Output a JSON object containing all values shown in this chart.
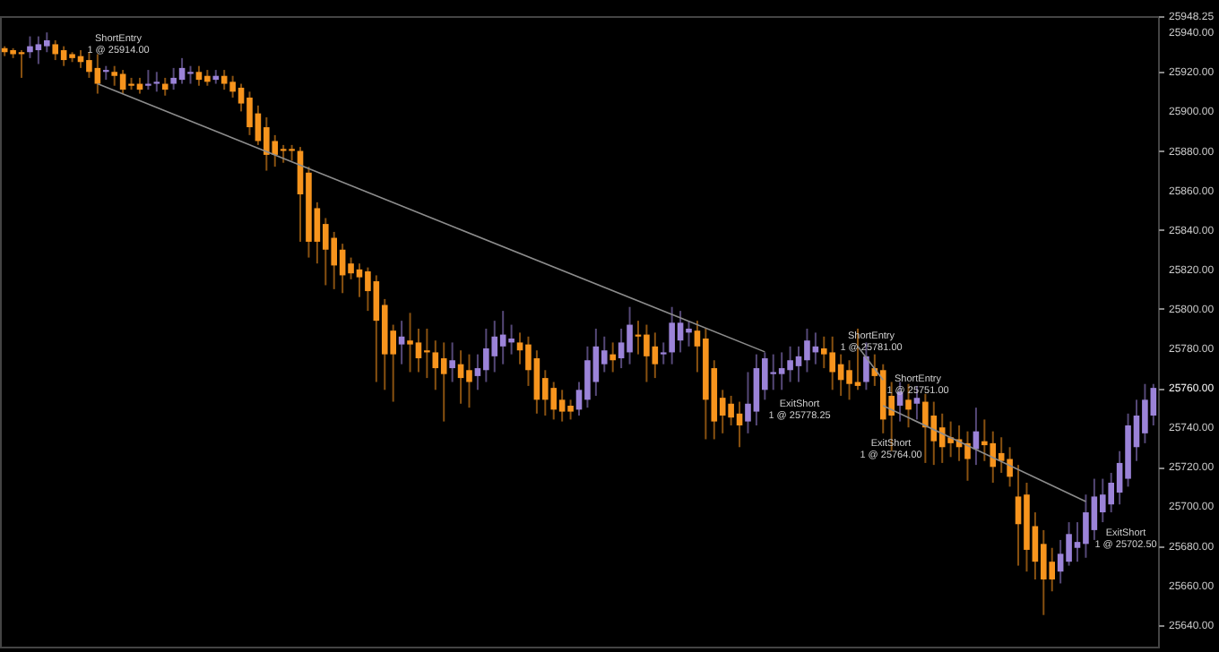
{
  "chart_data": {
    "type": "candlestick",
    "categories": [
      null,
      null,
      null,
      null,
      null,
      null,
      null,
      null,
      null,
      null,
      null,
      null,
      null,
      null,
      null,
      null,
      null,
      null,
      null,
      null,
      null,
      null,
      null,
      null,
      null,
      null,
      null,
      null,
      null,
      null,
      null,
      null,
      null,
      null,
      null,
      null,
      null,
      null,
      null,
      null,
      null,
      null,
      null,
      null,
      null,
      null,
      null,
      null,
      null,
      null,
      null,
      null,
      null,
      null,
      null,
      null,
      null,
      null,
      null,
      null,
      null,
      null,
      null,
      null,
      null,
      null,
      null,
      null,
      null,
      null,
      null,
      null,
      null,
      null,
      null,
      null,
      null,
      null,
      null,
      null,
      null,
      null,
      null,
      null,
      null,
      null,
      null,
      null,
      null,
      null,
      null,
      null,
      null,
      null,
      null,
      null,
      null,
      null,
      null,
      null,
      null,
      null,
      null,
      null,
      null,
      null,
      null,
      null,
      null,
      null,
      null,
      null,
      null,
      null,
      null,
      null,
      null,
      null,
      null,
      null,
      null,
      null,
      null,
      null,
      null,
      null,
      null,
      null,
      null,
      null,
      null,
      null,
      null,
      null,
      null,
      null,
      null
    ],
    "ohlc": [
      [
        25932,
        25933,
        25928,
        25930
      ],
      [
        25931,
        25932,
        25927,
        25929
      ],
      [
        25930,
        25931,
        25917,
        25929
      ],
      [
        25930,
        25938,
        25927,
        25933
      ],
      [
        25931,
        25938,
        25924,
        25934
      ],
      [
        25933,
        25940,
        25930,
        25936
      ],
      [
        25934,
        25936,
        25926,
        25929
      ],
      [
        25931,
        25933,
        25923,
        25926
      ],
      [
        25929,
        25930,
        25925,
        25927
      ],
      [
        25928,
        25931,
        25922,
        25925
      ],
      [
        25926,
        25930,
        25917,
        25920
      ],
      [
        25922,
        25929,
        25909,
        25914
      ],
      [
        25920,
        25923,
        25916,
        25921
      ],
      [
        25920,
        25923,
        25913,
        25918
      ],
      [
        25919,
        25921,
        25909,
        25911
      ],
      [
        25914,
        25917,
        25911,
        25913
      ],
      [
        25914,
        25917,
        25909,
        25911
      ],
      [
        25913,
        25921,
        25911,
        25914
      ],
      [
        25914,
        25920,
        25910,
        25915
      ],
      [
        25914,
        25917,
        25908,
        25911
      ],
      [
        25914,
        25922,
        25911,
        25917
      ],
      [
        25916,
        25927,
        25914,
        25922
      ],
      [
        25919,
        25923,
        25914,
        25920
      ],
      [
        25920,
        25923,
        25913,
        25916
      ],
      [
        25918,
        25921,
        25913,
        25915
      ],
      [
        25916,
        25921,
        25914,
        25918
      ],
      [
        25918,
        25921,
        25911,
        25914
      ],
      [
        25915,
        25918,
        25907,
        25910
      ],
      [
        25912,
        25914,
        25900,
        25904
      ],
      [
        25907,
        25910,
        25888,
        25892
      ],
      [
        25899,
        25903,
        25883,
        25885
      ],
      [
        25892,
        25897,
        25870,
        25878
      ],
      [
        25885,
        25888,
        25872,
        25878
      ],
      [
        25881,
        25883,
        25874,
        25880
      ],
      [
        25881,
        25883,
        25875,
        25880
      ],
      [
        25880,
        25882,
        25834,
        25858
      ],
      [
        25869,
        25872,
        25826,
        25834
      ],
      [
        25851,
        25854,
        25823,
        25834
      ],
      [
        25843,
        25846,
        25812,
        25830
      ],
      [
        25836,
        25839,
        25810,
        25822
      ],
      [
        25830,
        25833,
        25808,
        25817
      ],
      [
        25823,
        25826,
        25815,
        25818
      ],
      [
        25820,
        25823,
        25806,
        25816
      ],
      [
        25819,
        25821,
        25799,
        25809
      ],
      [
        25814,
        25817,
        25763,
        25794
      ],
      [
        25802,
        25805,
        25759,
        25777
      ],
      [
        25789,
        25792,
        25753,
        25777
      ],
      [
        25782,
        25794,
        25772,
        25786
      ],
      [
        25784,
        25798,
        25768,
        25782
      ],
      [
        25783,
        25790,
        25768,
        25775
      ],
      [
        25779,
        25790,
        25765,
        25778
      ],
      [
        25778,
        25784,
        25759,
        25770
      ],
      [
        25775,
        25783,
        25743,
        25767
      ],
      [
        25770,
        25783,
        25763,
        25774
      ],
      [
        25772,
        25779,
        25752,
        25765
      ],
      [
        25769,
        25777,
        25750,
        25763
      ],
      [
        25766,
        25777,
        25759,
        25770
      ],
      [
        25769,
        25790,
        25763,
        25780
      ],
      [
        25776,
        25794,
        25768,
        25786
      ],
      [
        25781,
        25799,
        25772,
        25787
      ],
      [
        25783,
        25792,
        25777,
        25785
      ],
      [
        25783,
        25788,
        25772,
        25779
      ],
      [
        25782,
        25786,
        25761,
        25769
      ],
      [
        25775,
        25779,
        25747,
        25754
      ],
      [
        25765,
        25769,
        25746,
        25754
      ],
      [
        25760,
        25763,
        25744,
        25749
      ],
      [
        25754,
        25759,
        25743,
        25748
      ],
      [
        25751,
        25754,
        25744,
        25748
      ],
      [
        25749,
        25763,
        25746,
        25759
      ],
      [
        25754,
        25781,
        25750,
        25774
      ],
      [
        25763,
        25790,
        25756,
        25781
      ],
      [
        25772,
        25786,
        25768,
        25779
      ],
      [
        25777,
        25783,
        25768,
        25774
      ],
      [
        25775,
        25790,
        25770,
        25783
      ],
      [
        25778,
        25801,
        25772,
        25792
      ],
      [
        25787,
        25794,
        25777,
        25786
      ],
      [
        25787,
        25792,
        25763,
        25776
      ],
      [
        25781,
        25788,
        25765,
        25772
      ],
      [
        25777,
        25783,
        25772,
        25778
      ],
      [
        25778,
        25801,
        25772,
        25793
      ],
      [
        25784,
        25799,
        25778,
        25793
      ],
      [
        25788,
        25794,
        25781,
        25790
      ],
      [
        25789,
        25794,
        25768,
        25781
      ],
      [
        25785,
        25790,
        25734,
        25754
      ],
      [
        25770,
        25774,
        25734,
        25743
      ],
      [
        25755,
        25759,
        25737,
        25746
      ],
      [
        25752,
        25756,
        25741,
        25745
      ],
      [
        25747,
        25753,
        25730,
        25741
      ],
      [
        25743,
        25768,
        25737,
        25752
      ],
      [
        25748,
        25777,
        25741,
        25770
      ],
      [
        25759,
        25778,
        25754,
        25775
      ],
      [
        25767,
        25777,
        25759,
        25768
      ],
      [
        25767,
        25778,
        25759,
        25770
      ],
      [
        25769,
        25781,
        25763,
        25774
      ],
      [
        25771,
        25781,
        25763,
        25776
      ],
      [
        25774,
        25790,
        25768,
        25784
      ],
      [
        25778,
        25788,
        25772,
        25781
      ],
      [
        25780,
        25786,
        25770,
        25777
      ],
      [
        25778,
        25786,
        25759,
        25768
      ],
      [
        25772,
        25777,
        25756,
        25764
      ],
      [
        25769,
        25774,
        25754,
        25762
      ],
      [
        25763,
        25790,
        25759,
        25761
      ],
      [
        25763,
        25783,
        25759,
        25776
      ],
      [
        25770,
        25777,
        25761,
        25766
      ],
      [
        25769,
        25772,
        25737,
        25744
      ],
      [
        25756,
        25763,
        25728,
        25746
      ],
      [
        25751,
        25763,
        25743,
        25758
      ],
      [
        25754,
        25762,
        25740,
        25749
      ],
      [
        25752,
        25761,
        25744,
        25755
      ],
      [
        25753,
        25757,
        25722,
        25740
      ],
      [
        25746,
        25753,
        25721,
        25733
      ],
      [
        25740,
        25747,
        25722,
        25730
      ],
      [
        25735,
        25743,
        25725,
        25732
      ],
      [
        25734,
        25741,
        25723,
        25730
      ],
      [
        25732,
        25738,
        25713,
        25724
      ],
      [
        25729,
        25750,
        25721,
        25738
      ],
      [
        25733,
        25744,
        25723,
        25731
      ],
      [
        25732,
        25738,
        25712,
        25720
      ],
      [
        25727,
        25735,
        25717,
        25723
      ],
      [
        25724,
        25730,
        25710,
        25715
      ],
      [
        25705,
        25721,
        25670,
        25691
      ],
      [
        25706,
        25712,
        25667,
        25678
      ],
      [
        25690,
        25697,
        25663,
        25672
      ],
      [
        25681,
        25688,
        25645,
        25663
      ],
      [
        25672,
        25679,
        25657,
        25663
      ],
      [
        25667,
        25683,
        25661,
        25676
      ],
      [
        25672,
        25692,
        25670,
        25686
      ],
      [
        25679,
        25692,
        25672,
        25682
      ],
      [
        25681,
        25706,
        25674,
        25697
      ],
      [
        25688,
        25714,
        25683,
        25705
      ],
      [
        25697,
        25714,
        25692,
        25706
      ],
      [
        25701,
        25717,
        25697,
        25712
      ],
      [
        25707,
        25728,
        25701,
        25722
      ],
      [
        25714,
        25747,
        25710,
        25741
      ],
      [
        25730,
        25754,
        25723,
        25746
      ],
      [
        25737,
        25762,
        25732,
        25754
      ],
      [
        25746,
        25762,
        25741,
        25760
      ]
    ],
    "colors": [
      "#f7941d",
      "#f7941d",
      "#f7941d",
      "#9b83d8",
      "#9b83d8",
      "#9b83d8",
      "#f7941d",
      "#f7941d",
      "#f7941d",
      "#f7941d",
      "#f7941d",
      "#f7941d",
      "#9b83d8",
      "#f7941d",
      "#f7941d",
      "#f7941d",
      "#f7941d",
      "#9b83d8",
      "#9b83d8",
      "#f7941d",
      "#9b83d8",
      "#9b83d8",
      "#9b83d8",
      "#f7941d",
      "#f7941d",
      "#9b83d8",
      "#f7941d",
      "#f7941d",
      "#f7941d",
      "#f7941d",
      "#f7941d",
      "#f7941d",
      "#f7941d",
      "#f7941d",
      "#f7941d",
      "#f7941d",
      "#f7941d",
      "#f7941d",
      "#f7941d",
      "#f7941d",
      "#f7941d",
      "#f7941d",
      "#f7941d",
      "#f7941d",
      "#f7941d",
      "#f7941d",
      "#f7941d",
      "#9b83d8",
      "#f7941d",
      "#f7941d",
      "#f7941d",
      "#f7941d",
      "#f7941d",
      "#9b83d8",
      "#f7941d",
      "#f7941d",
      "#9b83d8",
      "#9b83d8",
      "#9b83d8",
      "#9b83d8",
      "#9b83d8",
      "#f7941d",
      "#f7941d",
      "#f7941d",
      "#f7941d",
      "#f7941d",
      "#f7941d",
      "#f7941d",
      "#9b83d8",
      "#9b83d8",
      "#9b83d8",
      "#9b83d8",
      "#f7941d",
      "#9b83d8",
      "#9b83d8",
      "#f7941d",
      "#f7941d",
      "#f7941d",
      "#9b83d8",
      "#9b83d8",
      "#9b83d8",
      "#9b83d8",
      "#f7941d",
      "#f7941d",
      "#f7941d",
      "#f7941d",
      "#f7941d",
      "#f7941d",
      "#9b83d8",
      "#9b83d8",
      "#9b83d8",
      "#9b83d8",
      "#9b83d8",
      "#9b83d8",
      "#9b83d8",
      "#9b83d8",
      "#9b83d8",
      "#f7941d",
      "#f7941d",
      "#f7941d",
      "#f7941d",
      "#f7941d",
      "#9b83d8",
      "#f7941d",
      "#f7941d",
      "#f7941d",
      "#9b83d8",
      "#f7941d",
      "#9b83d8",
      "#f7941d",
      "#f7941d",
      "#f7941d",
      "#f7941d",
      "#f7941d",
      "#f7941d",
      "#9b83d8",
      "#f7941d",
      "#f7941d",
      "#f7941d",
      "#f7941d",
      "#f7941d",
      "#f7941d",
      "#f7941d",
      "#f7941d",
      "#f7941d",
      "#9b83d8",
      "#9b83d8",
      "#9b83d8",
      "#9b83d8",
      "#9b83d8",
      "#9b83d8",
      "#9b83d8",
      "#9b83d8",
      "#9b83d8",
      "#9b83d8",
      "#9b83d8",
      "#9b83d8"
    ],
    "series": [
      {
        "type": "line",
        "color": "#8c8c8c",
        "values": [
          null,
          null,
          null,
          null,
          null,
          null,
          null,
          null,
          null,
          null,
          null,
          25914,
          null,
          null,
          null,
          null,
          null,
          null,
          null,
          null,
          null,
          null,
          null,
          null,
          null,
          null,
          null,
          null,
          null,
          null,
          null,
          null,
          null,
          null,
          null,
          null,
          null,
          null,
          null,
          null,
          null,
          null,
          null,
          null,
          null,
          null,
          null,
          null,
          null,
          null,
          null,
          null,
          null,
          null,
          null,
          null,
          null,
          null,
          null,
          null,
          null,
          null,
          null,
          null,
          null,
          null,
          null,
          null,
          null,
          null,
          null,
          null,
          null,
          null,
          null,
          null,
          null,
          null,
          null,
          null,
          null,
          null,
          null,
          null,
          null,
          null,
          null,
          null,
          null,
          null,
          25778.25,
          null,
          null,
          null,
          null,
          null,
          null,
          null,
          null,
          null,
          null,
          null,
          null,
          null,
          null,
          null,
          null,
          null,
          null,
          null,
          null,
          null,
          null,
          null,
          null,
          null,
          null,
          null,
          null,
          null,
          null,
          null,
          null,
          null,
          null,
          null,
          null,
          null,
          null,
          null,
          null,
          null,
          null,
          null,
          null,
          null,
          null
        ]
      },
      {
        "type": "line",
        "color": "#8c8c8c",
        "values": [
          null,
          null,
          null,
          null,
          null,
          null,
          null,
          null,
          null,
          null,
          null,
          null,
          null,
          null,
          null,
          null,
          null,
          null,
          null,
          null,
          null,
          null,
          null,
          null,
          null,
          null,
          null,
          null,
          null,
          null,
          null,
          null,
          null,
          null,
          null,
          null,
          null,
          null,
          null,
          null,
          null,
          null,
          null,
          null,
          null,
          null,
          null,
          null,
          null,
          null,
          null,
          null,
          null,
          null,
          null,
          null,
          null,
          null,
          null,
          null,
          null,
          null,
          null,
          null,
          null,
          null,
          null,
          null,
          null,
          null,
          null,
          null,
          null,
          null,
          null,
          null,
          null,
          null,
          null,
          null,
          null,
          null,
          null,
          null,
          null,
          null,
          null,
          null,
          null,
          null,
          null,
          null,
          null,
          null,
          null,
          null,
          null,
          null,
          null,
          null,
          null,
          25781,
          null,
          null,
          25764,
          null,
          null,
          null,
          null,
          null,
          null,
          null,
          null,
          null,
          null,
          null,
          null,
          null,
          null,
          null,
          null,
          null,
          null,
          null,
          null,
          null,
          null,
          null,
          null,
          null,
          null,
          null,
          null,
          null,
          null,
          null,
          null
        ]
      },
      {
        "type": "line",
        "color": "#8c8c8c",
        "values": [
          null,
          null,
          null,
          null,
          null,
          null,
          null,
          null,
          null,
          null,
          null,
          null,
          null,
          null,
          null,
          null,
          null,
          null,
          null,
          null,
          null,
          null,
          null,
          null,
          null,
          null,
          null,
          null,
          null,
          null,
          null,
          null,
          null,
          null,
          null,
          null,
          null,
          null,
          null,
          null,
          null,
          null,
          null,
          null,
          null,
          null,
          null,
          null,
          null,
          null,
          null,
          null,
          null,
          null,
          null,
          null,
          null,
          null,
          null,
          null,
          null,
          null,
          null,
          null,
          null,
          null,
          null,
          null,
          null,
          null,
          null,
          null,
          null,
          null,
          null,
          null,
          null,
          null,
          null,
          null,
          null,
          null,
          null,
          null,
          null,
          null,
          null,
          null,
          null,
          null,
          null,
          null,
          null,
          null,
          null,
          null,
          null,
          null,
          null,
          null,
          null,
          null,
          null,
          null,
          25751,
          null,
          null,
          null,
          null,
          null,
          null,
          null,
          null,
          null,
          null,
          null,
          null,
          null,
          null,
          null,
          null,
          null,
          null,
          null,
          null,
          null,
          null,
          null,
          25702.5,
          null,
          null,
          null,
          null,
          null,
          null,
          null,
          null
        ]
      }
    ],
    "ylim": [
      25629,
      25948.25
    ],
    "yticks": [
      {
        "value": 25640,
        "label": "25640.00"
      },
      {
        "value": 25660,
        "label": "25660.00"
      },
      {
        "value": 25680,
        "label": "25680.00"
      },
      {
        "value": 25700,
        "label": "25700.00"
      },
      {
        "value": 25720,
        "label": "25720.00"
      },
      {
        "value": 25740,
        "label": "25740.00"
      },
      {
        "value": 25760,
        "label": "25760.00"
      },
      {
        "value": 25780,
        "label": "25780.00"
      },
      {
        "value": 25800,
        "label": "25800.00"
      },
      {
        "value": 25820,
        "label": "25820.00"
      },
      {
        "value": 25840,
        "label": "25840.00"
      },
      {
        "value": 25860,
        "label": "25860.00"
      },
      {
        "value": 25880,
        "label": "25880.00"
      },
      {
        "value": 25900,
        "label": "25900.00"
      },
      {
        "value": 25920,
        "label": "25920.00"
      },
      {
        "value": 25940,
        "label": "25940.00"
      },
      {
        "value": 25948.25,
        "label": "25948.25"
      }
    ],
    "tick_labels": "y",
    "annotations": [
      "ShortEntry\n1 @ 25914.00",
      "ExitShort\n1 @ 25778.25",
      "ShortEntry\n1 @ 25781.00",
      "ShortEntry\n1 @ 25751.00",
      "ExitShort\n1 @ 25764.00",
      "ExitShort\n1 @ 25702.50"
    ]
  }
}
